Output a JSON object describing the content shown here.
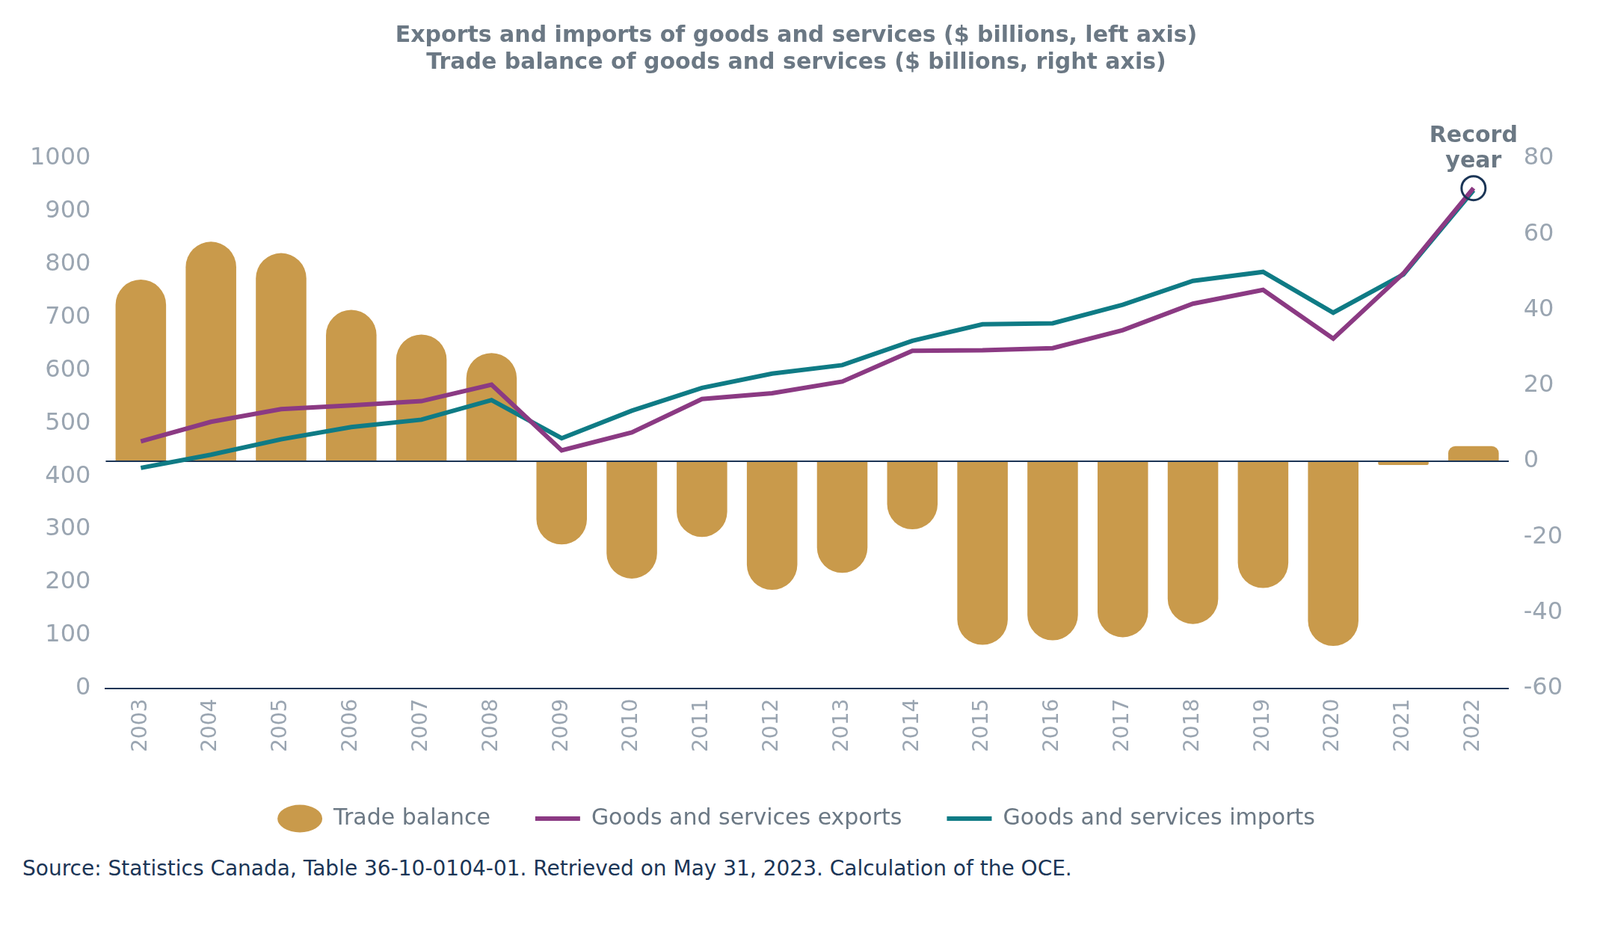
{
  "chart_data": {
    "type": "bar",
    "title": [
      "Exports and imports of goods and services ($ billions, left axis)",
      "Trade balance of goods and services ($ billions, right axis)"
    ],
    "categories": [
      "2003",
      "2004",
      "2005",
      "2006",
      "2007",
      "2008",
      "2009",
      "2010",
      "2011",
      "2012",
      "2013",
      "2014",
      "2015",
      "2016",
      "2017",
      "2018",
      "2019",
      "2020",
      "2021",
      "2022"
    ],
    "series": [
      {
        "name": "Trade balance",
        "type": "bar",
        "axis": "y2",
        "color": "#c99a4b",
        "marker": "circle",
        "values": [
          48,
          58,
          55,
          40,
          33.5,
          28.6,
          -22,
          -31,
          -20,
          -34,
          -29.5,
          -18,
          -48.5,
          -47.3,
          -46.5,
          -43,
          -33.5,
          -48.8,
          -1,
          4
        ]
      },
      {
        "name": "Goods and services exports",
        "type": "line",
        "color": "#8b3a83",
        "values": [
          466,
          503,
          527,
          534,
          542,
          573,
          449,
          483,
          546,
          557,
          579,
          637,
          638,
          642,
          676,
          726,
          752,
          660,
          783,
          944
        ]
      },
      {
        "name": "Goods and services imports",
        "type": "line",
        "color": "#0f7b85",
        "values": [
          416,
          441,
          470,
          493,
          507,
          544,
          472,
          524,
          567,
          594,
          610,
          656,
          687,
          689,
          724,
          769,
          786,
          709,
          781,
          940
        ]
      }
    ],
    "ylim": [
      0,
      1000
    ],
    "yticks": [
      0,
      100,
      200,
      300,
      400,
      500,
      600,
      700,
      800,
      900,
      1000
    ],
    "y2lim": [
      -60,
      80
    ],
    "y2ticks": [
      -60,
      -40,
      -20,
      0,
      20,
      40,
      60,
      80
    ],
    "grid": false,
    "legend": "bottom",
    "annotations": [
      {
        "text": "Record year",
        "category": "2022",
        "series": "Goods and services exports"
      }
    ],
    "source": "Source: Statistics Canada, Table 36-10-0104-01. Retrieved on May 31, 2023. Calculation of the OCE."
  }
}
